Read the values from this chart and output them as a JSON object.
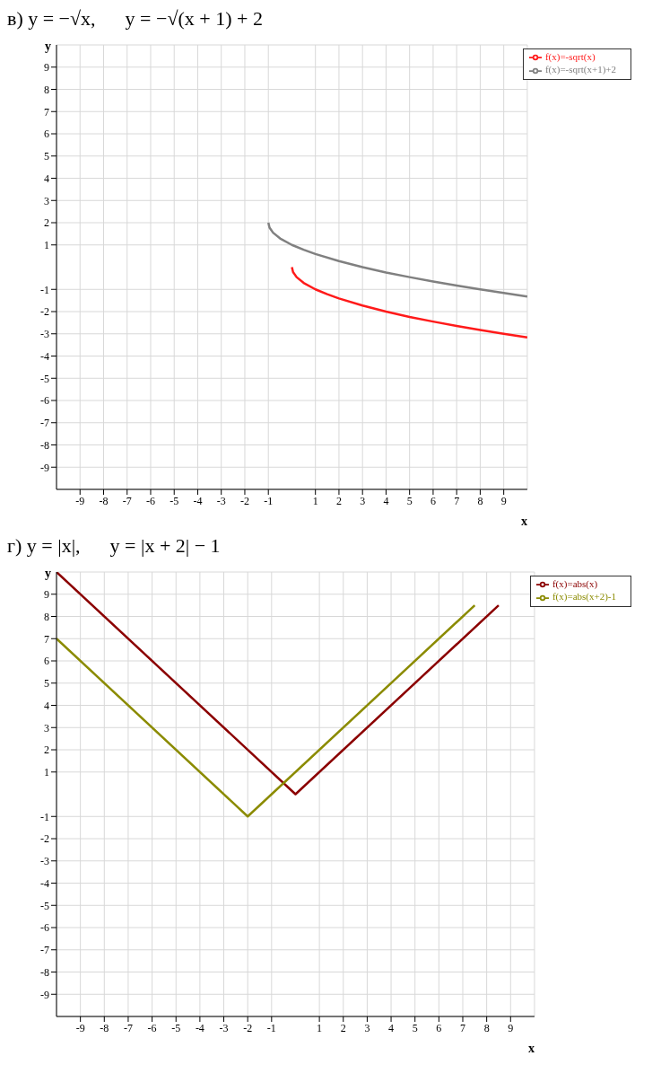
{
  "chart_data": [
    {
      "type": "line",
      "title": "в) y = −√x,      y = −√(x + 1) + 2",
      "xlabel": "x",
      "ylabel": "y",
      "xlim": [
        -10,
        10
      ],
      "ylim": [
        -10,
        10
      ],
      "xticks": [
        -9,
        -8,
        -7,
        -6,
        -5,
        -4,
        -3,
        -2,
        -1,
        1,
        2,
        3,
        4,
        5,
        6,
        7,
        8,
        9
      ],
      "yticks": [
        -9,
        -8,
        -7,
        -6,
        -5,
        -4,
        -3,
        -2,
        -1,
        1,
        2,
        3,
        4,
        5,
        6,
        7,
        8,
        9
      ],
      "grid": true,
      "legend": "top right",
      "marker": "none",
      "series": [
        {
          "name": "f(x)=-sqrt(x)",
          "color": "#ff1a1a",
          "x": [
            0,
            0.05,
            0.2,
            0.5,
            1,
            1.5,
            2,
            3,
            4,
            5,
            6,
            7,
            8,
            9,
            10
          ],
          "values": [
            0,
            -0.22,
            -0.45,
            -0.71,
            -1,
            -1.22,
            -1.41,
            -1.73,
            -2,
            -2.24,
            -2.45,
            -2.65,
            -2.83,
            -3,
            -3.16
          ]
        },
        {
          "name": "f(x)=-sqrt(x+1)+2",
          "color": "#808080",
          "x": [
            -1,
            -0.95,
            -0.8,
            -0.5,
            0,
            0.5,
            1,
            2,
            3,
            4,
            5,
            6,
            7,
            8,
            9,
            10
          ],
          "values": [
            2,
            1.78,
            1.55,
            1.29,
            1,
            0.78,
            0.59,
            0.27,
            0,
            -0.24,
            -0.45,
            -0.65,
            -0.83,
            -1,
            -1.16,
            -1.32
          ]
        }
      ]
    },
    {
      "type": "line",
      "title": "г) y = |x|,      y = |x + 2| − 1",
      "xlabel": "x",
      "ylabel": "y",
      "xlim": [
        -10,
        10
      ],
      "ylim": [
        -10,
        10
      ],
      "xticks": [
        -9,
        -8,
        -7,
        -6,
        -5,
        -4,
        -3,
        -2,
        -1,
        1,
        2,
        3,
        4,
        5,
        6,
        7,
        8,
        9
      ],
      "yticks": [
        -9,
        -8,
        -7,
        -6,
        -5,
        -4,
        -3,
        -2,
        -1,
        1,
        2,
        3,
        4,
        5,
        6,
        7,
        8,
        9
      ],
      "grid": true,
      "legend": "top right",
      "marker": "none",
      "series": [
        {
          "name": "f(x)=abs(x)",
          "color": "#8b0000",
          "x": [
            -10,
            0,
            8.5
          ],
          "values": [
            10,
            0,
            8.5
          ]
        },
        {
          "name": "f(x)=abs(x+2)-1",
          "color": "#8b8b00",
          "x": [
            -10,
            -2,
            7.5
          ],
          "values": [
            7,
            -1,
            8.5
          ]
        }
      ]
    }
  ]
}
